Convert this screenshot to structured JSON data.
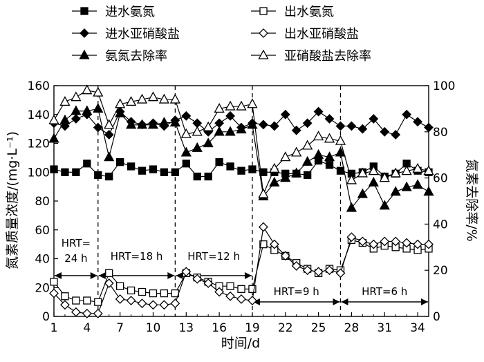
{
  "chart_data": {
    "type": "line",
    "xlabel": "时间/d",
    "ylabel_left": "氮素质量浓度/(mg·L⁻¹)",
    "ylabel_right": "氮素去除率/%",
    "xlim": [
      1,
      35
    ],
    "ylim_left": [
      0,
      160
    ],
    "ylim_right": [
      0,
      100
    ],
    "xticks": [
      1,
      4,
      7,
      10,
      13,
      16,
      19,
      22,
      25,
      28,
      31,
      34
    ],
    "yticks_left": [
      0,
      20,
      40,
      60,
      80,
      100,
      120,
      140,
      160
    ],
    "yticks_right": [
      0,
      20,
      40,
      60,
      80,
      100
    ],
    "x": [
      1,
      2,
      3,
      4,
      5,
      6,
      7,
      8,
      9,
      10,
      11,
      12,
      13,
      14,
      15,
      16,
      17,
      18,
      19,
      20,
      21,
      22,
      23,
      24,
      25,
      26,
      27,
      28,
      29,
      30,
      31,
      32,
      33,
      34,
      35
    ],
    "series": [
      {
        "name": "进水氨氮",
        "axis": "left",
        "marker": "filled-square",
        "values": [
          102,
          100,
          100,
          106,
          98,
          97,
          107,
          104,
          101,
          102,
          100,
          100,
          106,
          97,
          97,
          107,
          104,
          101,
          102,
          100,
          100,
          99,
          99,
          98,
          108,
          105,
          101,
          99,
          100,
          104,
          97,
          99,
          106,
          101,
          100
        ]
      },
      {
        "name": "出水氨氮",
        "axis": "left",
        "marker": "open-square",
        "values": [
          24,
          14,
          11,
          11,
          10,
          30,
          21,
          18,
          17,
          16,
          16,
          16,
          30,
          27,
          24,
          21,
          21,
          19,
          19,
          50,
          46,
          42,
          37,
          33,
          30,
          33,
          32,
          53,
          51,
          47,
          49,
          48,
          47,
          46,
          47
        ]
      },
      {
        "name": "进水亚硝酸盐",
        "axis": "left",
        "marker": "filled-diamond",
        "values": [
          134,
          132,
          137,
          140,
          131,
          126,
          142,
          135,
          133,
          134,
          132,
          136,
          139,
          134,
          128,
          134,
          139,
          131,
          134,
          133,
          132,
          140,
          129,
          134,
          142,
          137,
          132,
          132,
          130,
          137,
          128,
          126,
          140,
          135,
          131
        ]
      },
      {
        "name": "出水亚硝酸盐",
        "axis": "left",
        "marker": "open-diamond",
        "values": [
          16,
          8,
          3,
          2,
          2,
          23,
          12,
          11,
          9,
          8,
          8,
          9,
          31,
          26,
          23,
          17,
          14,
          12,
          11,
          62,
          50,
          42,
          35,
          32,
          31,
          32,
          30,
          55,
          52,
          50,
          52,
          52,
          51,
          50,
          50
        ]
      },
      {
        "name": "氨氮去除率",
        "axis": "right",
        "marker": "filled-triangle",
        "values": [
          77,
          85,
          89,
          89,
          90,
          69,
          88,
          83,
          83,
          83,
          84,
          84,
          71,
          73,
          75,
          80,
          80,
          81,
          83,
          52,
          58,
          60,
          62,
          67,
          70,
          69,
          71,
          47,
          53,
          58,
          48,
          54,
          56,
          57,
          54
        ]
      },
      {
        "name": "亚硝酸盐去除率",
        "axis": "right",
        "marker": "open-triangle",
        "values": [
          85,
          93,
          95,
          98,
          97,
          83,
          92,
          93,
          94,
          95,
          94,
          94,
          79,
          80,
          82,
          90,
          91,
          91,
          92,
          53,
          64,
          69,
          71,
          74,
          78,
          77,
          76,
          59,
          62,
          63,
          60,
          62,
          63,
          64,
          63
        ]
      }
    ],
    "phases": [
      {
        "label": "HRT=\n24 h",
        "start": 1,
        "end": 5
      },
      {
        "label": "HRT=18 h",
        "start": 5,
        "end": 12
      },
      {
        "label": "HRT=12 h",
        "start": 12,
        "end": 19
      },
      {
        "label": "HRT=9 h",
        "start": 19,
        "end": 27
      },
      {
        "label": "HRT=6 h",
        "start": 27,
        "end": 35
      }
    ],
    "legend_position": "top",
    "grid": false
  }
}
